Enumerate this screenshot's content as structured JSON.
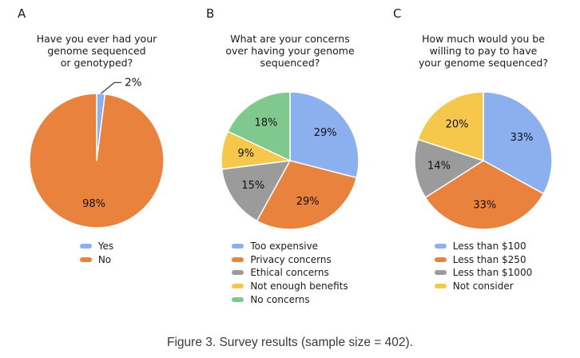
{
  "figure": {
    "caption": "Figure 3. Survey results (sample size = 402).",
    "panels": [
      {
        "letter": "A"
      },
      {
        "letter": "B"
      },
      {
        "letter": "C"
      }
    ]
  },
  "palette": {
    "blue": "#8CAFF0",
    "orange": "#E8823C",
    "gray": "#9B9B9B",
    "yellow": "#F5C84C",
    "green": "#7FC98F",
    "label_text": "#111111",
    "leader_line": "#2b2b2b"
  },
  "chart_data": [
    {
      "type": "pie",
      "panel": "A",
      "title": "Have you ever had your\ngenome sequenced\nor genotyped?",
      "labels": [
        "Yes",
        "No"
      ],
      "values": [
        2,
        98
      ],
      "percent_labels": [
        "2%",
        "98%"
      ],
      "colors": [
        "#8CAFF0",
        "#E8823C"
      ],
      "start_angle": "12 o'clock",
      "direction": "clockwise",
      "legend_position": "below",
      "notes": "2% slice labeled outside with leader line; 98% labeled inside"
    },
    {
      "type": "pie",
      "panel": "B",
      "title": "What are your concerns\nover having your genome\nsequenced?",
      "labels": [
        "Too expensive",
        "Privacy concerns",
        "Ethical concerns",
        "Not enough benefits",
        "No concerns"
      ],
      "values": [
        29,
        29,
        15,
        9,
        18
      ],
      "percent_labels": [
        "29%",
        "29%",
        "15%",
        "9%",
        "18%"
      ],
      "colors": [
        "#8CAFF0",
        "#E8823C",
        "#9B9B9B",
        "#F5C84C",
        "#7FC98F"
      ],
      "start_angle": "12 o'clock",
      "direction": "clockwise",
      "legend_position": "below",
      "notes": "all percent labels inside slices"
    },
    {
      "type": "pie",
      "panel": "C",
      "title": "How much would you be\nwilling to pay to have\nyour genome sequenced?",
      "labels": [
        "Less than $100",
        "Less than $250",
        "Less than $1000",
        "Not consider"
      ],
      "values": [
        33,
        33,
        14,
        20
      ],
      "percent_labels": [
        "33%",
        "33%",
        "14%",
        "20%"
      ],
      "colors": [
        "#8CAFF0",
        "#E8823C",
        "#9B9B9B",
        "#F5C84C"
      ],
      "start_angle": "12 o'clock",
      "direction": "clockwise",
      "legend_position": "below",
      "notes": "all percent labels inside slices"
    }
  ]
}
